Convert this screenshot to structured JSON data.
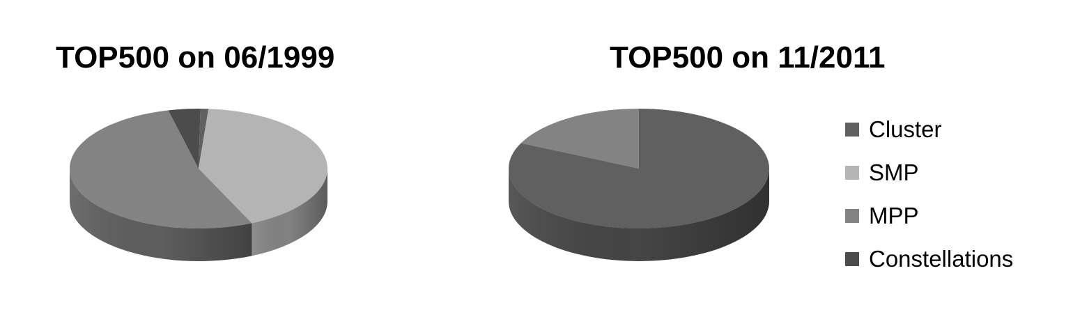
{
  "chart_data": [
    {
      "type": "pie",
      "title": "TOP500 on 06/1999",
      "categories": [
        "Cluster",
        "SMP",
        "MPP",
        "Constellations"
      ],
      "values": [
        1,
        42,
        53,
        4
      ]
    },
    {
      "type": "pie",
      "title": "TOP500 on 11/2011",
      "categories": [
        "Cluster",
        "SMP",
        "MPP",
        "Constellations"
      ],
      "values": [
        82,
        0,
        18,
        0
      ]
    }
  ],
  "legend": {
    "placement": "right",
    "items": [
      {
        "label": "Cluster",
        "color": "#606060"
      },
      {
        "label": "SMP",
        "color": "#b4b4b4"
      },
      {
        "label": "MPP",
        "color": "#838383"
      },
      {
        "label": "Constellations",
        "color": "#4c4c4c"
      }
    ]
  }
}
